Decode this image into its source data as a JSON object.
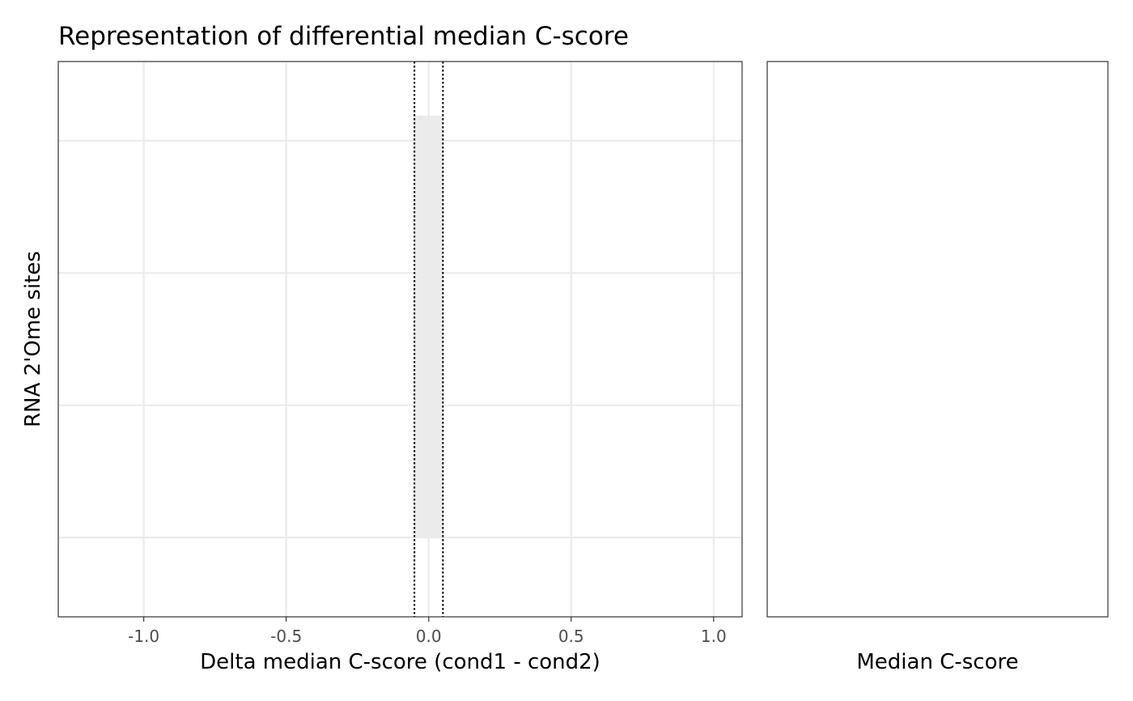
{
  "chart_data": [
    {
      "type": "bar",
      "orientation": "horizontal",
      "title": "Representation of differential median C-score",
      "xlabel": "Delta median C-score (cond1 - cond2)",
      "ylabel": "RNA 2'Ome sites",
      "xlim": [
        -1.3,
        1.1
      ],
      "x_ticks": [
        -1.0,
        -0.5,
        0.0,
        0.5,
        1.0
      ],
      "x_tick_labels": [
        "-1.0",
        "-0.5",
        "0.0",
        "0.5",
        "1.0"
      ],
      "y_categories": [
        "",
        "",
        "",
        ""
      ],
      "grid": true,
      "threshold_lines": [
        -0.05,
        0.05
      ],
      "threshold_band": [
        -0.05,
        0.05
      ],
      "band_color": "#ebebeb",
      "grid_color": "#ebebeb",
      "line_color": "#000000"
    },
    {
      "type": "bar",
      "title": "",
      "xlabel": "Median C-score",
      "ylabel": "",
      "grid": false
    }
  ]
}
